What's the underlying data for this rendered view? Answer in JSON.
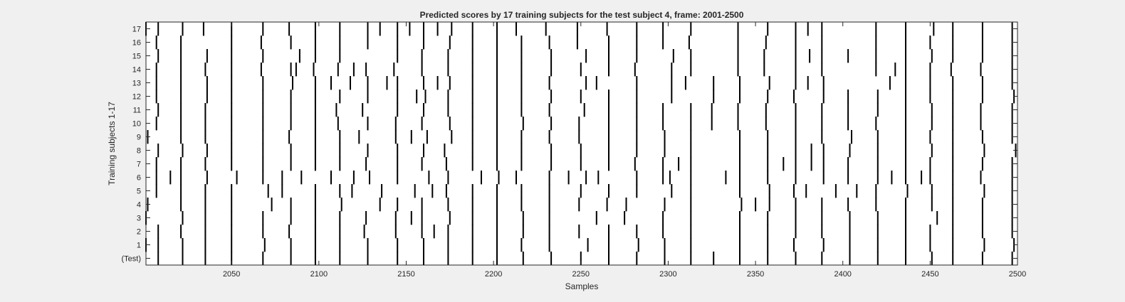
{
  "chart_data": {
    "type": "heatmap",
    "title": "Predicted scores by 17 training subjects for the test subject 4, frame: 2001-2500",
    "xlabel": "Samples",
    "ylabel": "Training subjects 1-17",
    "xlim": [
      2001,
      2500
    ],
    "xticks": [
      2050,
      2100,
      2150,
      2200,
      2250,
      2300,
      2350,
      2400,
      2450,
      2500
    ],
    "yticklabels": [
      "17",
      "16",
      "15",
      "14",
      "13",
      "12",
      "11",
      "10",
      "9",
      "8",
      "7",
      "6",
      "5",
      "4",
      "3",
      "2",
      "1",
      "(Test)"
    ],
    "colors": {
      "event": "#000000",
      "background": "#ffffff"
    },
    "grid": false,
    "legend": "none",
    "rows": [
      {
        "label": "17",
        "events": [
          2001,
          2008,
          2022,
          2034,
          2050,
          2068,
          2083,
          2098,
          2112,
          2128,
          2135,
          2145,
          2152,
          2160,
          2168,
          2176,
          2188,
          2202,
          2213,
          2230,
          2248,
          2265,
          2282,
          2297,
          2313,
          2340,
          2357,
          2373,
          2380,
          2388,
          2419,
          2436,
          2452,
          2463,
          2480,
          2497
        ]
      },
      {
        "label": "16",
        "events": [
          2007,
          2021,
          2050,
          2067,
          2084,
          2098,
          2112,
          2128,
          2145,
          2160,
          2175,
          2188,
          2202,
          2216,
          2232,
          2248,
          2266,
          2282,
          2297,
          2312,
          2340,
          2356,
          2373,
          2388,
          2419,
          2436,
          2450,
          2463,
          2480,
          2497
        ]
      },
      {
        "label": "15",
        "events": [
          2008,
          2021,
          2036,
          2050,
          2068,
          2089,
          2098,
          2112,
          2145,
          2159,
          2174,
          2188,
          2202,
          2216,
          2233,
          2253,
          2266,
          2282,
          2303,
          2313,
          2340,
          2355,
          2373,
          2381,
          2388,
          2403,
          2419,
          2436,
          2451,
          2463,
          2480,
          2497
        ]
      },
      {
        "label": "14",
        "events": [
          2007,
          2021,
          2035,
          2050,
          2067,
          2084,
          2087,
          2097,
          2111,
          2120,
          2127,
          2143,
          2159,
          2174,
          2188,
          2202,
          2216,
          2233,
          2250,
          2266,
          2281,
          2302,
          2313,
          2340,
          2355,
          2373,
          2388,
          2419,
          2430,
          2436,
          2450,
          2462,
          2479,
          2497
        ]
      },
      {
        "label": "13",
        "events": [
          2007,
          2021,
          2036,
          2050,
          2068,
          2085,
          2098,
          2107,
          2118,
          2128,
          2139,
          2145,
          2160,
          2168,
          2175,
          2188,
          2202,
          2216,
          2232,
          2253,
          2259,
          2282,
          2302,
          2310,
          2326,
          2341,
          2358,
          2373,
          2380,
          2389,
          2427,
          2436,
          2450,
          2463,
          2480,
          2497
        ]
      },
      {
        "label": "12",
        "events": [
          2007,
          2021,
          2036,
          2050,
          2068,
          2084,
          2098,
          2112,
          2128,
          2145,
          2156,
          2161,
          2174,
          2188,
          2202,
          2216,
          2233,
          2250,
          2266,
          2282,
          2302,
          2326,
          2341,
          2357,
          2372,
          2389,
          2403,
          2420,
          2436,
          2450,
          2463,
          2480,
          2498
        ]
      },
      {
        "label": "11",
        "events": [
          2008,
          2021,
          2035,
          2050,
          2068,
          2084,
          2098,
          2110,
          2125,
          2145,
          2160,
          2174,
          2188,
          2202,
          2216,
          2232,
          2252,
          2266,
          2282,
          2297,
          2313,
          2325,
          2340,
          2356,
          2373,
          2388,
          2403,
          2420,
          2436,
          2451,
          2463,
          2479,
          2497
        ]
      },
      {
        "label": "10",
        "events": [
          2007,
          2021,
          2035,
          2050,
          2068,
          2084,
          2098,
          2111,
          2128,
          2144,
          2159,
          2175,
          2188,
          2202,
          2217,
          2233,
          2249,
          2266,
          2282,
          2297,
          2313,
          2325,
          2340,
          2356,
          2373,
          2388,
          2403,
          2419,
          2436,
          2451,
          2463,
          2479,
          2497
        ]
      },
      {
        "label": "9",
        "events": [
          2002,
          2021,
          2035,
          2050,
          2068,
          2083,
          2098,
          2112,
          2123,
          2144,
          2153,
          2162,
          2176,
          2188,
          2202,
          2216,
          2232,
          2249,
          2266,
          2282,
          2298,
          2313,
          2341,
          2357,
          2373,
          2388,
          2405,
          2420,
          2436,
          2450,
          2463,
          2480,
          2497
        ]
      },
      {
        "label": "8",
        "events": [
          2008,
          2022,
          2036,
          2050,
          2068,
          2084,
          2098,
          2112,
          2128,
          2145,
          2160,
          2172,
          2188,
          2202,
          2216,
          2233,
          2250,
          2266,
          2282,
          2298,
          2313,
          2341,
          2357,
          2373,
          2382,
          2389,
          2404,
          2420,
          2436,
          2451,
          2463,
          2481,
          2499
        ]
      },
      {
        "label": "7",
        "events": [
          2007,
          2021,
          2035,
          2050,
          2068,
          2084,
          2098,
          2112,
          2127,
          2145,
          2159,
          2173,
          2188,
          2202,
          2216,
          2233,
          2250,
          2266,
          2281,
          2297,
          2306,
          2313,
          2341,
          2357,
          2366,
          2373,
          2382,
          2389,
          2403,
          2420,
          2436,
          2450,
          2463,
          2480,
          2497
        ]
      },
      {
        "label": "6",
        "events": [
          2007,
          2015,
          2021,
          2036,
          2053,
          2068,
          2079,
          2090,
          2107,
          2120,
          2129,
          2145,
          2163,
          2174,
          2193,
          2203,
          2213,
          2232,
          2243,
          2253,
          2260,
          2282,
          2297,
          2301,
          2313,
          2333,
          2341,
          2357,
          2373,
          2389,
          2403,
          2420,
          2428,
          2436,
          2445,
          2450,
          2463,
          2479,
          2497
        ]
      },
      {
        "label": "5",
        "events": [
          2007,
          2021,
          2035,
          2050,
          2071,
          2079,
          2098,
          2112,
          2119,
          2136,
          2155,
          2165,
          2173,
          2188,
          2202,
          2216,
          2232,
          2250,
          2266,
          2282,
          2302,
          2313,
          2341,
          2358,
          2372,
          2379,
          2396,
          2408,
          2419,
          2437,
          2451,
          2463,
          2481,
          2497
        ]
      },
      {
        "label": "4",
        "events": [
          2002,
          2021,
          2035,
          2050,
          2073,
          2084,
          2098,
          2113,
          2135,
          2145,
          2159,
          2174,
          2188,
          2202,
          2216,
          2232,
          2249,
          2265,
          2276,
          2298,
          2313,
          2342,
          2350,
          2358,
          2373,
          2388,
          2403,
          2419,
          2436,
          2451,
          2463,
          2480,
          2497
        ]
      },
      {
        "label": "3",
        "events": [
          2001,
          2022,
          2035,
          2050,
          2068,
          2084,
          2098,
          2112,
          2127,
          2144,
          2153,
          2159,
          2175,
          2188,
          2202,
          2217,
          2232,
          2259,
          2275,
          2297,
          2313,
          2341,
          2357,
          2373,
          2388,
          2404,
          2420,
          2436,
          2454,
          2463,
          2480,
          2497
        ]
      },
      {
        "label": "2",
        "events": [
          2008,
          2021,
          2035,
          2050,
          2068,
          2083,
          2098,
          2112,
          2126,
          2144,
          2159,
          2166,
          2174,
          2188,
          2202,
          2217,
          2232,
          2249,
          2266,
          2282,
          2297,
          2313,
          2341,
          2357,
          2373,
          2388,
          2404,
          2420,
          2436,
          2450,
          2463,
          2480,
          2497
        ]
      },
      {
        "label": "1",
        "events": [
          2001,
          2008,
          2022,
          2035,
          2050,
          2069,
          2084,
          2098,
          2112,
          2128,
          2145,
          2160,
          2174,
          2188,
          2202,
          2216,
          2232,
          2254,
          2266,
          2283,
          2298,
          2313,
          2341,
          2357,
          2372,
          2389,
          2404,
          2420,
          2436,
          2450,
          2463,
          2481,
          2498
        ]
      },
      {
        "label": "(Test)",
        "events": [
          2008,
          2022,
          2035,
          2050,
          2068,
          2084,
          2098,
          2112,
          2128,
          2145,
          2160,
          2174,
          2188,
          2202,
          2217,
          2233,
          2250,
          2266,
          2282,
          2298,
          2313,
          2326,
          2341,
          2357,
          2373,
          2388,
          2404,
          2420,
          2436,
          2451,
          2463,
          2480,
          2497
        ]
      }
    ]
  }
}
